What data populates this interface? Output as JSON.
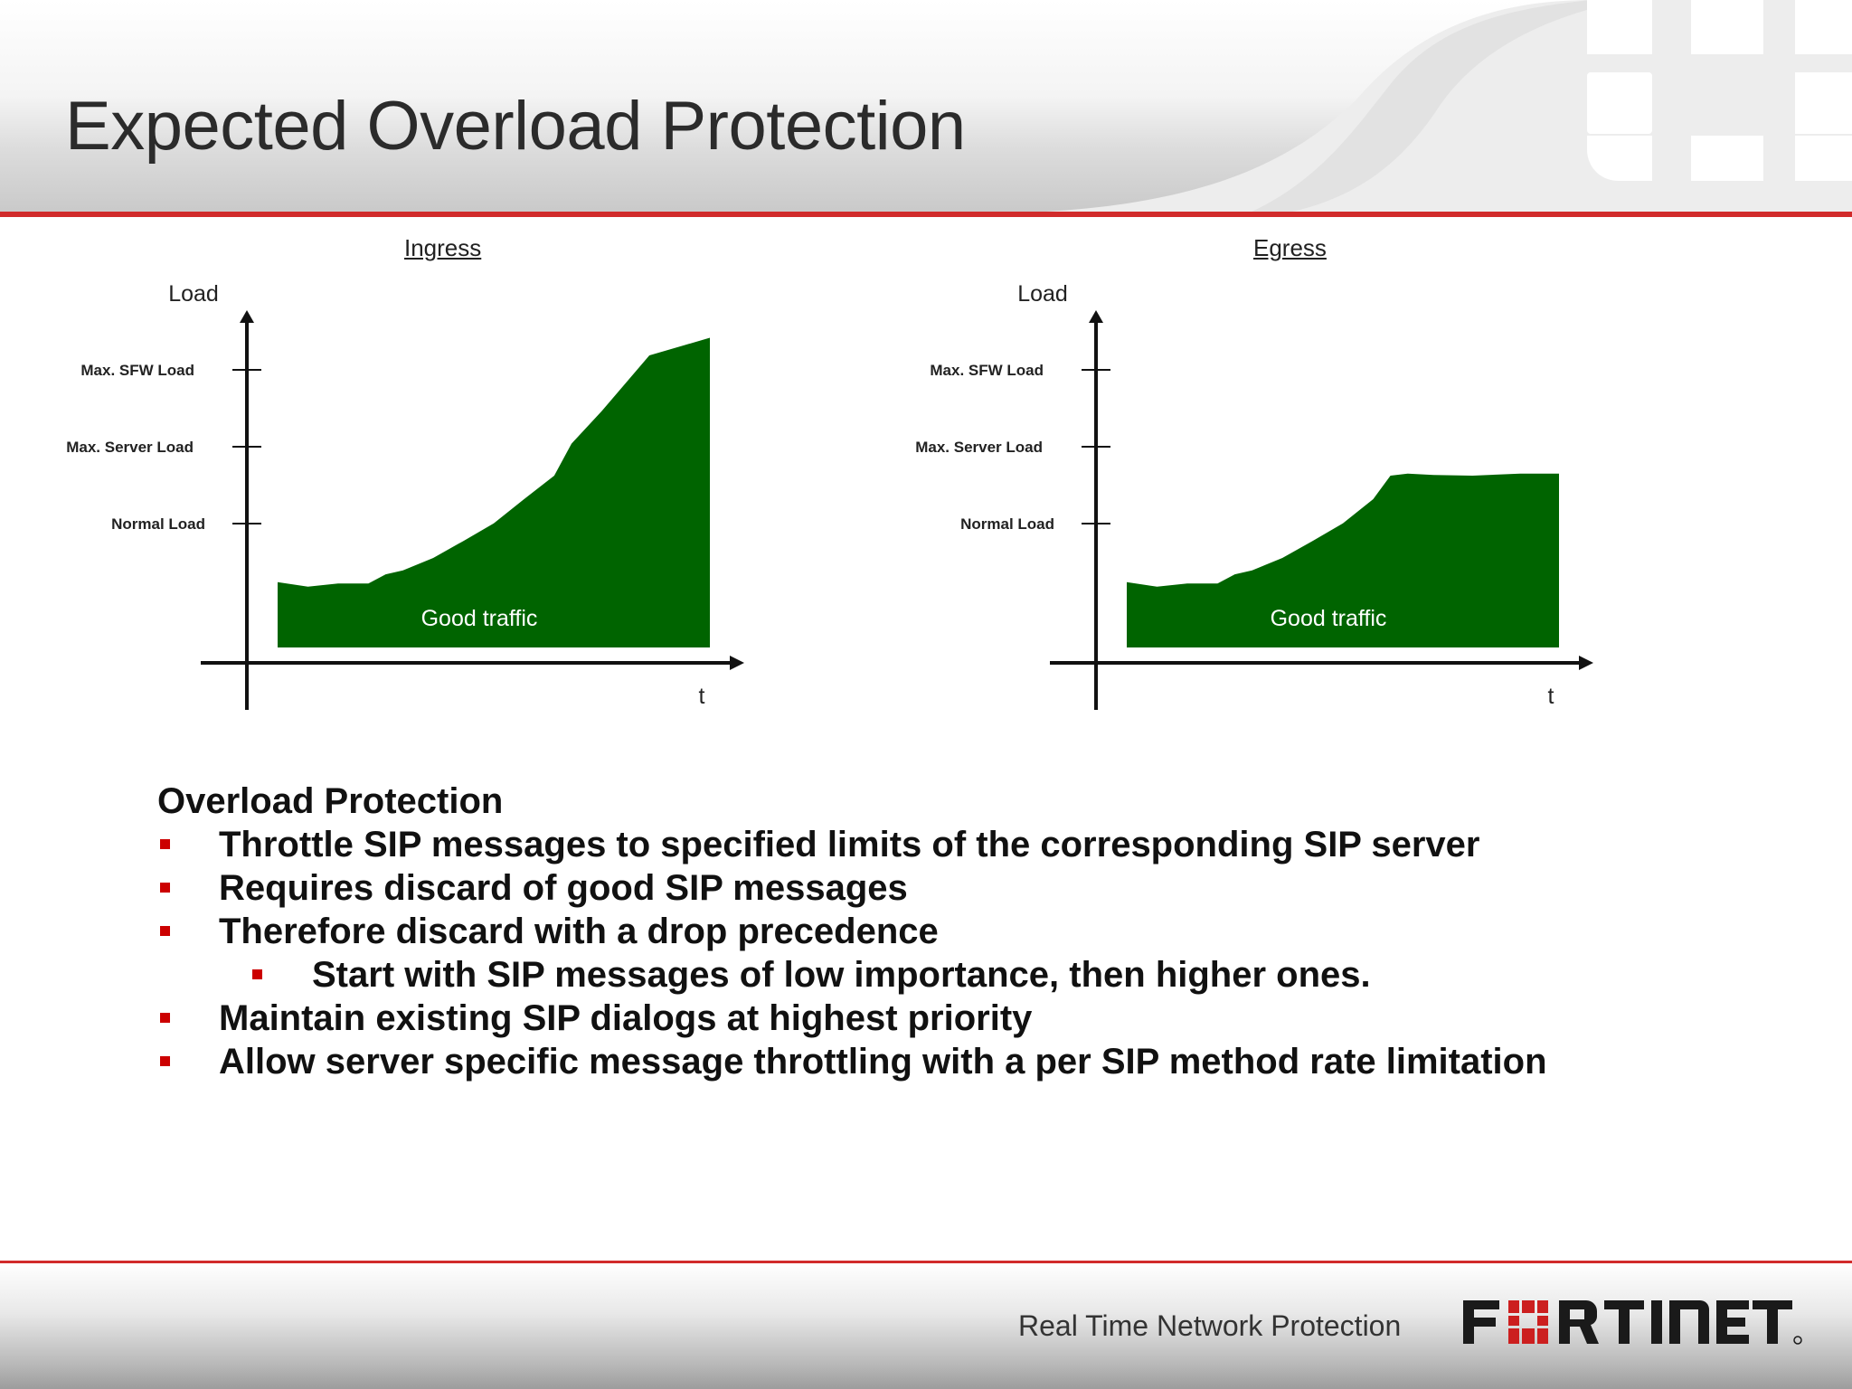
{
  "slide": {
    "title": "Expected Overload Protection"
  },
  "footer": {
    "tagline": "Real Time Network Protection",
    "brand": "FORTINET"
  },
  "colors": {
    "accent_red": "#d12b2b",
    "traffic_green": "#006400",
    "bullet_red": "#cc0000"
  },
  "chart_data": [
    {
      "type": "area",
      "title": "Ingress",
      "ylabel": "Load",
      "xlabel": "t",
      "y_levels": [
        "Normal Load",
        "Max. Server Load",
        "Max. SFW Load"
      ],
      "series": [
        {
          "name": "Good traffic",
          "x": [
            0,
            7,
            14,
            21,
            25,
            29,
            36,
            43,
            50,
            57,
            64,
            68,
            75,
            86,
            100
          ],
          "values": [
            1.0,
            0.93,
            0.98,
            0.98,
            1.12,
            1.18,
            1.37,
            1.63,
            1.9,
            2.27,
            2.63,
            3.12,
            3.62,
            4.47,
            4.74
          ]
        }
      ],
      "annotation": "Good traffic"
    },
    {
      "type": "area",
      "title": "Egress",
      "ylabel": "Load",
      "xlabel": "t",
      "y_levels": [
        "Normal Load",
        "Max. Server Load",
        "Max. SFW Load"
      ],
      "series": [
        {
          "name": "Good traffic",
          "x": [
            0,
            7,
            14,
            21,
            25,
            29,
            36,
            43,
            50,
            57,
            61,
            65,
            71,
            80,
            91,
            100
          ],
          "values": [
            1.0,
            0.93,
            0.98,
            0.98,
            1.12,
            1.18,
            1.37,
            1.63,
            1.9,
            2.27,
            2.63,
            2.66,
            2.64,
            2.63,
            2.66,
            2.66
          ]
        }
      ],
      "annotation": "Good traffic"
    }
  ],
  "bullets": {
    "heading": "Overload Protection",
    "items": [
      {
        "level": 1,
        "text": "Throttle SIP messages to specified limits of the corresponding SIP server"
      },
      {
        "level": 1,
        "text": "Requires discard of good SIP messages"
      },
      {
        "level": 1,
        "text": "Therefore discard with a drop precedence"
      },
      {
        "level": 2,
        "text": "Start with SIP messages of low importance, then higher ones."
      },
      {
        "level": 1,
        "text": "Maintain existing SIP dialogs at highest priority"
      },
      {
        "level": 1,
        "text": "Allow server specific message throttling with a per SIP method rate limitation"
      }
    ]
  }
}
